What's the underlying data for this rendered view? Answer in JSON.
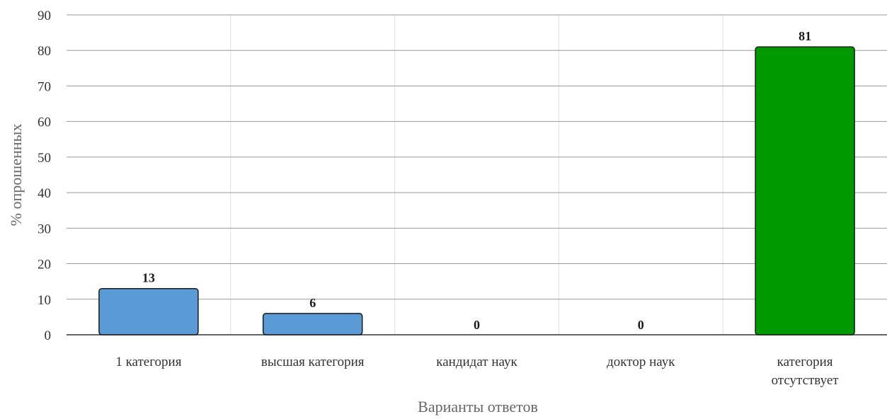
{
  "chart_data": {
    "type": "bar",
    "title": "",
    "xlabel": "Варианты ответов",
    "ylabel": "% опрошенных",
    "categories": [
      [
        "1 категория"
      ],
      [
        "высшая категория"
      ],
      [
        "кандидат наук"
      ],
      [
        "доктор наук"
      ],
      [
        "категория",
        "отсутствует"
      ]
    ],
    "values": [
      13,
      6,
      0,
      0,
      81
    ],
    "data_labels": [
      "13",
      "6",
      "0",
      "0",
      "81"
    ],
    "bar_colors": [
      "#5b9bd5",
      "#5b9bd5",
      "#5b9bd5",
      "#5b9bd5",
      "#009900"
    ],
    "ylim": [
      0,
      90
    ],
    "yticks": [
      0,
      10,
      20,
      30,
      40,
      50,
      60,
      70,
      80,
      90
    ],
    "grid": true,
    "legend": "none"
  }
}
